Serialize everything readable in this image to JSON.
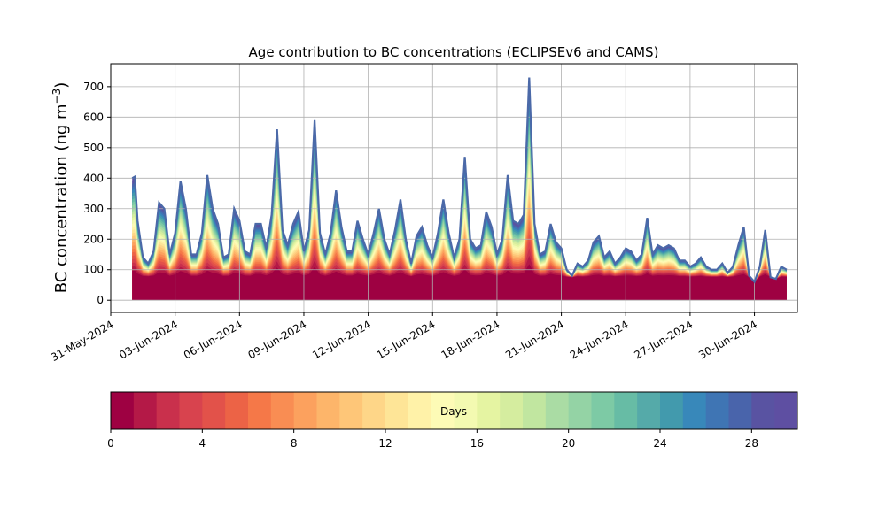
{
  "chart_data": {
    "type": "area",
    "title": "Age contribution to BC concentrations (ECLIPSEv6 and CAMS)",
    "ylabel": "BC concentration (ng m",
    "ylabel_sup": "−3",
    "ylabel_close": ")",
    "ylim": [
      -40,
      775
    ],
    "y_ticks": [
      0,
      100,
      200,
      300,
      400,
      500,
      600,
      700
    ],
    "x_start": "2024-05-31",
    "x_end": "2024-07-02",
    "x_ticks": [
      "2024-05-31",
      "2024-06-03",
      "2024-06-06",
      "2024-06-09",
      "2024-06-12",
      "2024-06-15",
      "2024-06-18",
      "2024-06-21",
      "2024-06-24",
      "2024-06-27",
      "2024-06-30"
    ],
    "x_tick_labels": [
      "31-May-2024",
      "03-Jun-2024",
      "06-Jun-2024",
      "09-Jun-2024",
      "12-Jun-2024",
      "15-Jun-2024",
      "18-Jun-2024",
      "21-Jun-2024",
      "24-Jun-2024",
      "27-Jun-2024",
      "30-Jun-2024"
    ],
    "grid": true,
    "total": {
      "x": [
        "2024-06-01 00:00",
        "2024-06-01 03:00",
        "2024-06-01 06:00",
        "2024-06-01 12:00",
        "2024-06-01 18:00",
        "2024-06-02 00:00",
        "2024-06-02 06:00",
        "2024-06-02 12:00",
        "2024-06-02 18:00",
        "2024-06-03 00:00",
        "2024-06-03 06:00",
        "2024-06-03 12:00",
        "2024-06-03 18:00",
        "2024-06-04 00:00",
        "2024-06-04 06:00",
        "2024-06-04 12:00",
        "2024-06-04 18:00",
        "2024-06-05 00:00",
        "2024-06-05 06:00",
        "2024-06-05 12:00",
        "2024-06-05 18:00",
        "2024-06-06 00:00",
        "2024-06-06 06:00",
        "2024-06-06 12:00",
        "2024-06-06 18:00",
        "2024-06-07 00:00",
        "2024-06-07 06:00",
        "2024-06-07 12:00",
        "2024-06-07 18:00",
        "2024-06-08 00:00",
        "2024-06-08 06:00",
        "2024-06-08 12:00",
        "2024-06-08 18:00",
        "2024-06-09 00:00",
        "2024-06-09 06:00",
        "2024-06-09 12:00",
        "2024-06-09 18:00",
        "2024-06-10 00:00",
        "2024-06-10 06:00",
        "2024-06-10 12:00",
        "2024-06-10 18:00",
        "2024-06-11 00:00",
        "2024-06-11 06:00",
        "2024-06-11 12:00",
        "2024-06-11 18:00",
        "2024-06-12 00:00",
        "2024-06-12 06:00",
        "2024-06-12 12:00",
        "2024-06-12 18:00",
        "2024-06-13 00:00",
        "2024-06-13 06:00",
        "2024-06-13 12:00",
        "2024-06-13 18:00",
        "2024-06-14 00:00",
        "2024-06-14 06:00",
        "2024-06-14 12:00",
        "2024-06-14 18:00",
        "2024-06-15 00:00",
        "2024-06-15 06:00",
        "2024-06-15 12:00",
        "2024-06-15 18:00",
        "2024-06-16 00:00",
        "2024-06-16 06:00",
        "2024-06-16 12:00",
        "2024-06-16 18:00",
        "2024-06-17 00:00",
        "2024-06-17 06:00",
        "2024-06-17 12:00",
        "2024-06-17 18:00",
        "2024-06-18 00:00",
        "2024-06-18 06:00",
        "2024-06-18 12:00",
        "2024-06-18 18:00",
        "2024-06-19 00:00",
        "2024-06-19 06:00",
        "2024-06-19 12:00",
        "2024-06-19 18:00",
        "2024-06-20 00:00",
        "2024-06-20 06:00",
        "2024-06-20 12:00",
        "2024-06-20 18:00",
        "2024-06-21 00:00",
        "2024-06-21 06:00",
        "2024-06-21 12:00",
        "2024-06-21 18:00",
        "2024-06-22 00:00",
        "2024-06-22 06:00",
        "2024-06-22 12:00",
        "2024-06-22 18:00",
        "2024-06-23 00:00",
        "2024-06-23 06:00",
        "2024-06-23 12:00",
        "2024-06-23 18:00",
        "2024-06-24 00:00",
        "2024-06-24 06:00",
        "2024-06-24 12:00",
        "2024-06-24 18:00",
        "2024-06-25 00:00",
        "2024-06-25 06:00",
        "2024-06-25 12:00",
        "2024-06-25 18:00",
        "2024-06-26 00:00",
        "2024-06-26 06:00",
        "2024-06-26 12:00",
        "2024-06-26 18:00",
        "2024-06-27 00:00",
        "2024-06-27 06:00",
        "2024-06-27 12:00",
        "2024-06-27 18:00",
        "2024-06-28 00:00",
        "2024-06-28 06:00",
        "2024-06-28 12:00",
        "2024-06-28 18:00",
        "2024-06-29 00:00",
        "2024-06-29 06:00",
        "2024-06-29 12:00",
        "2024-06-29 18:00",
        "2024-06-30 00:00",
        "2024-06-30 06:00",
        "2024-06-30 12:00",
        "2024-06-30 18:00",
        "2024-07-01 00:00",
        "2024-07-01 06:00",
        "2024-07-01 12:00"
      ],
      "y": [
        400,
        405,
        260,
        140,
        120,
        160,
        320,
        300,
        150,
        220,
        390,
        300,
        150,
        150,
        220,
        410,
        300,
        250,
        140,
        150,
        300,
        260,
        160,
        150,
        250,
        250,
        170,
        280,
        560,
        230,
        180,
        250,
        290,
        160,
        230,
        590,
        220,
        150,
        220,
        360,
        240,
        160,
        160,
        260,
        200,
        150,
        220,
        300,
        200,
        150,
        230,
        330,
        200,
        120,
        210,
        240,
        180,
        140,
        220,
        330,
        220,
        140,
        200,
        470,
        200,
        170,
        180,
        290,
        240,
        150,
        200,
        410,
        260,
        250,
        280,
        730,
        250,
        150,
        160,
        250,
        190,
        170,
        100,
        80,
        120,
        110,
        130,
        190,
        210,
        140,
        160,
        120,
        140,
        170,
        160,
        130,
        150,
        270,
        150,
        180,
        170,
        180,
        170,
        130,
        130,
        110,
        120,
        140,
        110,
        100,
        100,
        120,
        90,
        110,
        180,
        240,
        80,
        60,
        110,
        230,
        75,
        70,
        110,
        100
      ]
    },
    "colorbar": {
      "label": "Days",
      "min": 0,
      "max": 30,
      "ticks": [
        0,
        4,
        8,
        12,
        16,
        20,
        24,
        28
      ],
      "colors": [
        "#9e0142",
        "#b41947",
        "#c9304c",
        "#d8434e",
        "#e2524a",
        "#ec6346",
        "#f57848",
        "#f98d53",
        "#fca15e",
        "#fdb56a",
        "#fec678",
        "#fed688",
        "#fee597",
        "#fff2a8",
        "#fdfbb6",
        "#f3fab1",
        "#e5f4a2",
        "#d5ed9f",
        "#c1e6a0",
        "#aadca4",
        "#94d3a5",
        "#7dcaa5",
        "#67bca5",
        "#55aaa9",
        "#429aad",
        "#3888ba",
        "#3f75b4",
        "#4964ab",
        "#5953a2",
        "#5e4fa2"
      ]
    }
  }
}
